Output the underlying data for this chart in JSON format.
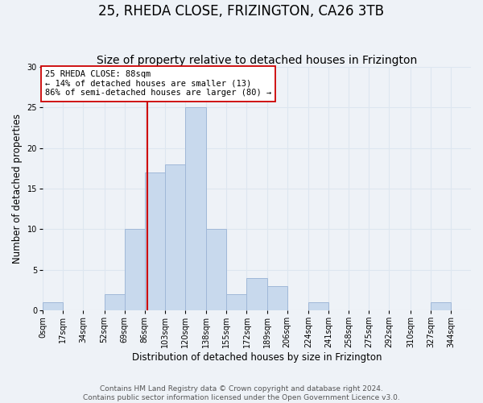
{
  "title": "25, RHEDA CLOSE, FRIZINGTON, CA26 3TB",
  "subtitle": "Size of property relative to detached houses in Frizington",
  "xlabel": "Distribution of detached houses by size in Frizington",
  "ylabel": "Number of detached properties",
  "footer_line1": "Contains HM Land Registry data © Crown copyright and database right 2024.",
  "footer_line2": "Contains public sector information licensed under the Open Government Licence v3.0.",
  "bin_edges": [
    0,
    17,
    34,
    52,
    69,
    86,
    103,
    120,
    138,
    155,
    172,
    189,
    206,
    224,
    241,
    258,
    275,
    292,
    310,
    327,
    344,
    361
  ],
  "bin_labels": [
    "0sqm",
    "17sqm",
    "34sqm",
    "52sqm",
    "69sqm",
    "86sqm",
    "103sqm",
    "120sqm",
    "138sqm",
    "155sqm",
    "172sqm",
    "189sqm",
    "206sqm",
    "224sqm",
    "241sqm",
    "258sqm",
    "275sqm",
    "292sqm",
    "310sqm",
    "327sqm",
    "344sqm"
  ],
  "counts": [
    1,
    0,
    0,
    2,
    10,
    17,
    18,
    25,
    10,
    2,
    4,
    3,
    0,
    1,
    0,
    0,
    0,
    0,
    0,
    1,
    0
  ],
  "bar_color": "#c8d9ed",
  "bar_edge_color": "#a0b8d8",
  "vline_x": 88,
  "vline_color": "#cc0000",
  "annotation_text": "25 RHEDA CLOSE: 88sqm\n← 14% of detached houses are smaller (13)\n86% of semi-detached houses are larger (80) →",
  "annotation_box_color": "#ffffff",
  "annotation_box_edge": "#cc0000",
  "ylim": [
    0,
    30
  ],
  "yticks": [
    0,
    5,
    10,
    15,
    20,
    25,
    30
  ],
  "grid_color": "#dde6f0",
  "background_color": "#eef2f7",
  "title_fontsize": 12,
  "subtitle_fontsize": 10,
  "axis_label_fontsize": 8.5,
  "tick_fontsize": 7,
  "footer_fontsize": 6.5
}
